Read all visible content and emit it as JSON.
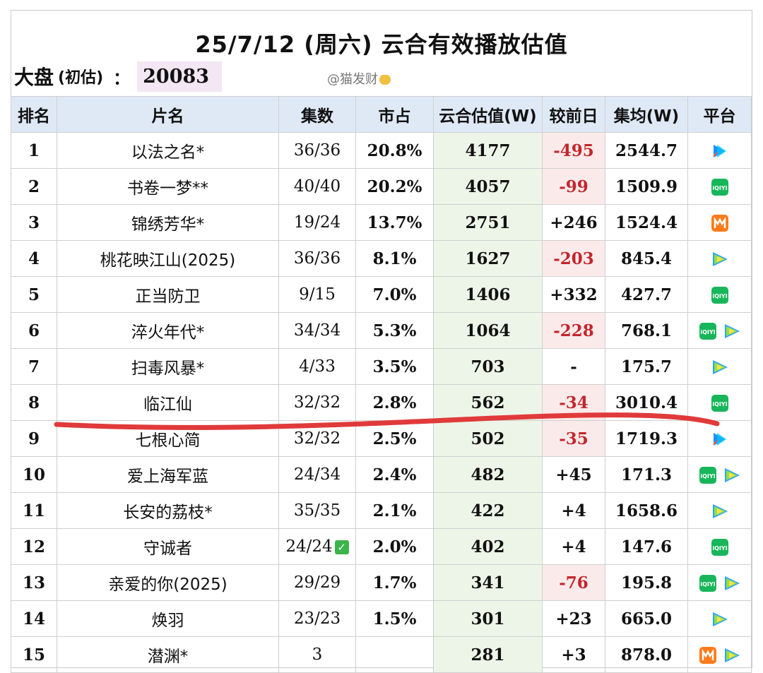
{
  "header": {
    "title": "25/7/12 (周六) 云合有效播放估值",
    "market_label": "大盘",
    "market_sub": "(初估)",
    "market_colon": "：",
    "market_value": "20083",
    "watermark": "@猫发财"
  },
  "table": {
    "columns": [
      "排名",
      "片名",
      "集数",
      "市占",
      "云合估值(W)",
      "较前日",
      "集均(W)",
      "平台"
    ],
    "rows": [
      {
        "rank": "1",
        "name": "以法之名*",
        "eps": "36/36",
        "share": "20.8%",
        "value": "4177",
        "diff": "-495",
        "avg": "2544.7",
        "check": false,
        "platforms": [
          "youku-icon"
        ]
      },
      {
        "rank": "2",
        "name": "书卷一梦**",
        "eps": "40/40",
        "share": "20.2%",
        "value": "4057",
        "diff": "-99",
        "avg": "1509.9",
        "check": false,
        "platforms": [
          "iqiyi-icon"
        ]
      },
      {
        "rank": "3",
        "name": "锦绣芳华*",
        "eps": "19/24",
        "share": "13.7%",
        "value": "2751",
        "diff": "+246",
        "avg": "1524.4",
        "check": false,
        "platforms": [
          "mango-tv-icon"
        ]
      },
      {
        "rank": "4",
        "name": "桃花映江山(2025)",
        "eps": "36/36",
        "share": "8.1%",
        "value": "1627",
        "diff": "-203",
        "avg": "845.4",
        "check": false,
        "platforms": [
          "tencent-video-icon"
        ]
      },
      {
        "rank": "5",
        "name": "正当防卫",
        "eps": "9/15",
        "share": "7.0%",
        "value": "1406",
        "diff": "+332",
        "avg": "427.7",
        "check": false,
        "platforms": [
          "iqiyi-icon"
        ]
      },
      {
        "rank": "6",
        "name": "淬火年代*",
        "eps": "34/34",
        "share": "5.3%",
        "value": "1064",
        "diff": "-228",
        "avg": "768.1",
        "check": false,
        "platforms": [
          "iqiyi-icon",
          "tencent-video-icon"
        ]
      },
      {
        "rank": "7",
        "name": "扫毒风暴*",
        "eps": "4/33",
        "share": "3.5%",
        "value": "703",
        "diff": "-",
        "avg": "175.7",
        "check": false,
        "platforms": [
          "tencent-video-icon"
        ]
      },
      {
        "rank": "8",
        "name": "临江仙",
        "eps": "32/32",
        "share": "2.8%",
        "value": "562",
        "diff": "-34",
        "avg": "3010.4",
        "check": false,
        "platforms": [
          "iqiyi-icon"
        ]
      },
      {
        "rank": "9",
        "name": "七根心简",
        "eps": "32/32",
        "share": "2.5%",
        "value": "502",
        "diff": "-35",
        "avg": "1719.3",
        "check": false,
        "platforms": [
          "youku-icon"
        ]
      },
      {
        "rank": "10",
        "name": "爱上海军蓝",
        "eps": "24/34",
        "share": "2.4%",
        "value": "482",
        "diff": "+45",
        "avg": "171.3",
        "check": false,
        "platforms": [
          "iqiyi-icon",
          "tencent-video-icon"
        ]
      },
      {
        "rank": "11",
        "name": "长安的荔枝*",
        "eps": "35/35",
        "share": "2.1%",
        "value": "422",
        "diff": "+4",
        "avg": "1658.6",
        "check": false,
        "platforms": [
          "tencent-video-icon"
        ]
      },
      {
        "rank": "12",
        "name": "守诚者",
        "eps": "24/24",
        "share": "2.0%",
        "value": "402",
        "diff": "+4",
        "avg": "147.6",
        "check": true,
        "platforms": [
          "iqiyi-icon"
        ]
      },
      {
        "rank": "13",
        "name": "亲爱的你(2025)",
        "eps": "29/29",
        "share": "1.7%",
        "value": "341",
        "diff": "-76",
        "avg": "195.8",
        "check": false,
        "platforms": [
          "iqiyi-icon",
          "tencent-video-icon"
        ]
      },
      {
        "rank": "14",
        "name": "焕羽",
        "eps": "23/23",
        "share": "1.5%",
        "value": "301",
        "diff": "+23",
        "avg": "665.0",
        "check": false,
        "platforms": [
          "tencent-video-icon"
        ]
      },
      {
        "rank": "15",
        "name": "潜渊*",
        "eps": "3",
        "share": "",
        "value": "281",
        "diff": "+3",
        "avg": "878.0",
        "check": false,
        "platforms": [
          "mango-tv-icon",
          "tencent-video-icon"
        ]
      }
    ]
  },
  "colors": {
    "header_bg": "#dfe9f6",
    "value_bg": "#edf5e8",
    "negative": "#c1272d",
    "market_bg": "#f3e7f4",
    "annotation_line": "#e03a3a"
  }
}
